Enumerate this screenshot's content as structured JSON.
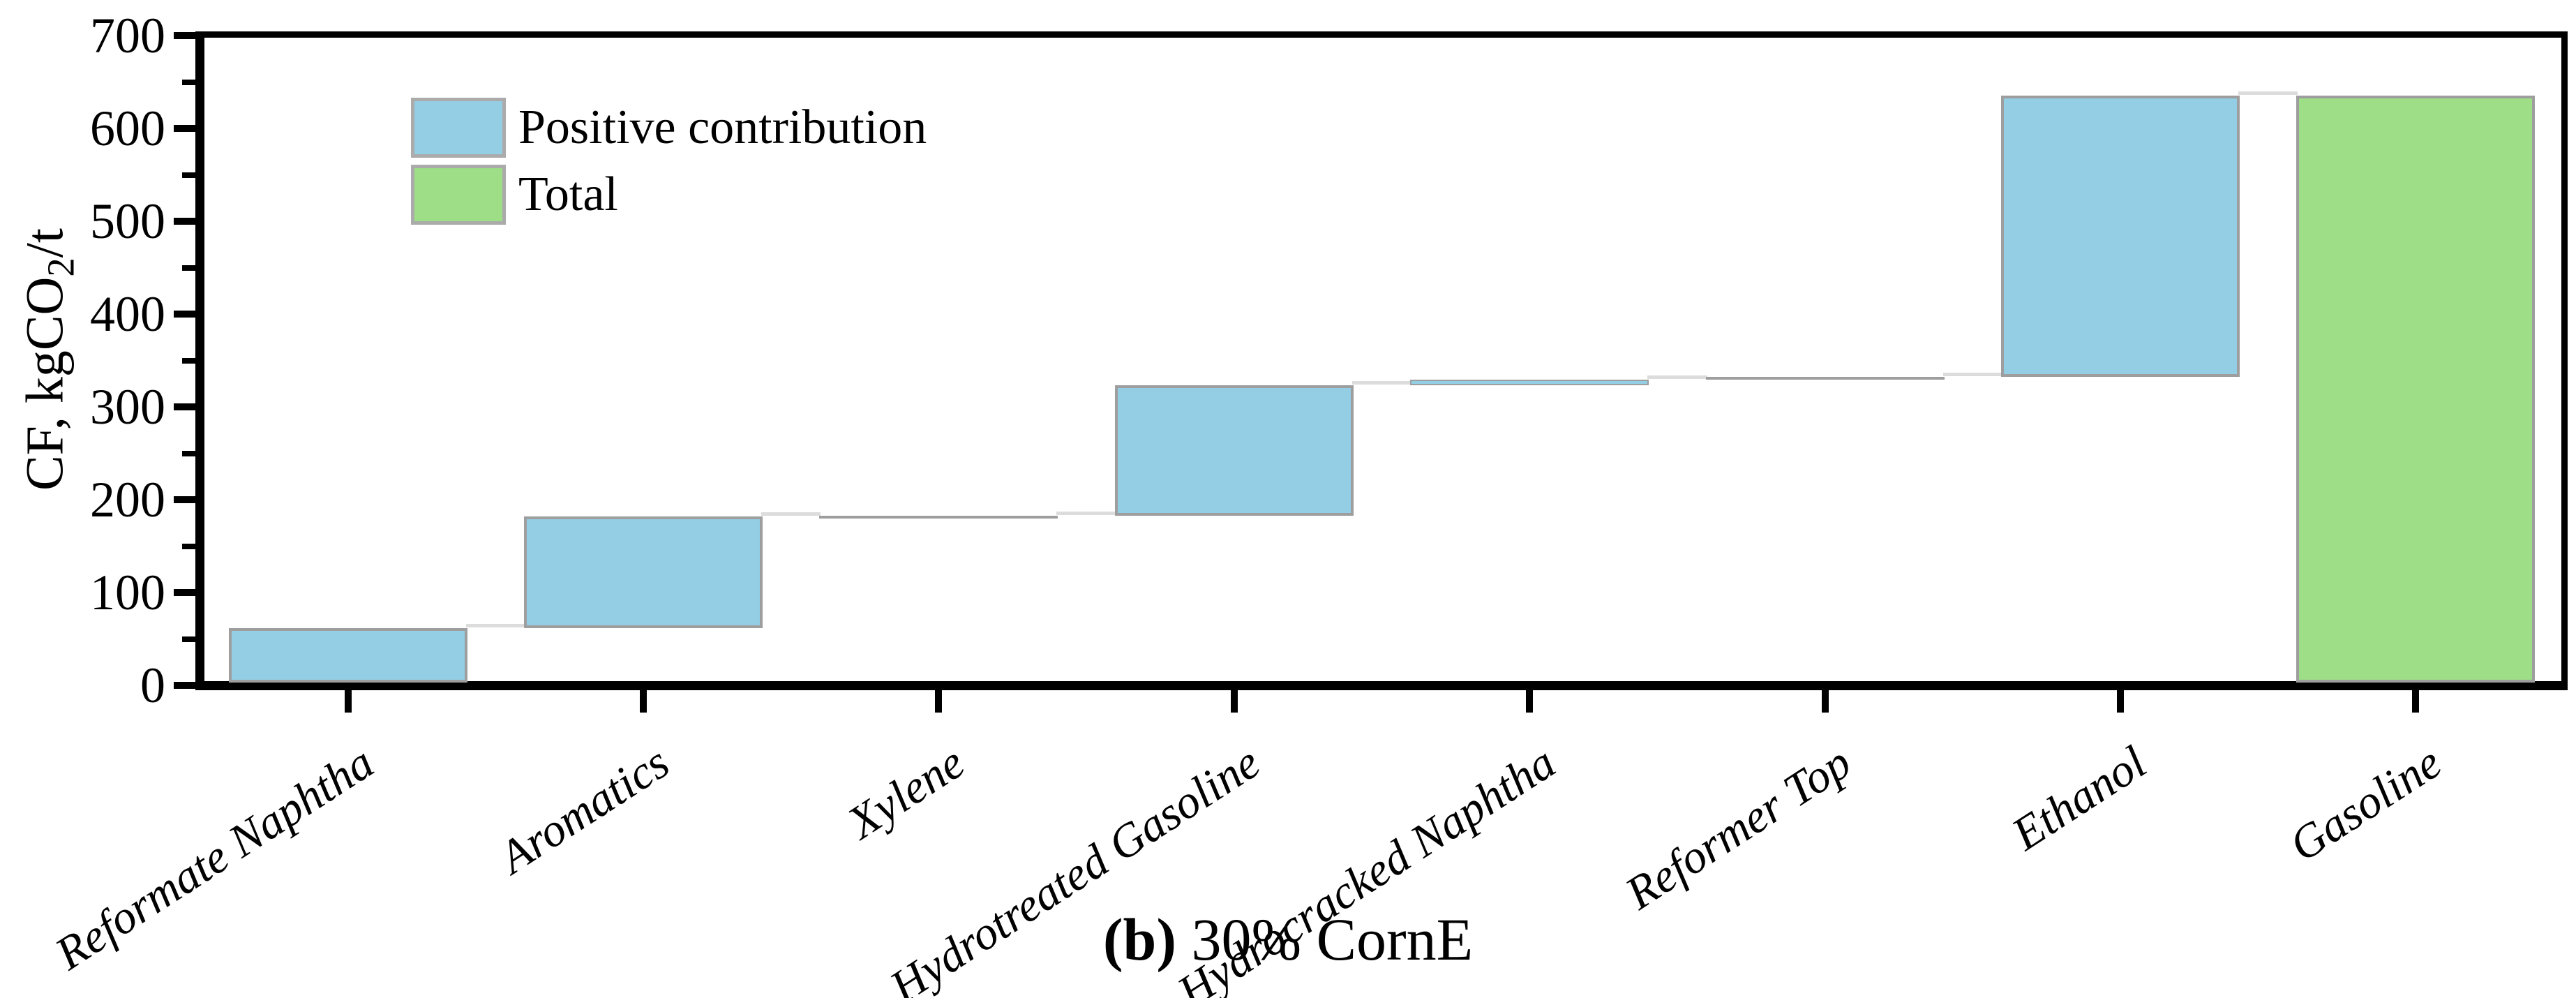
{
  "chart_data": {
    "type": "bar",
    "subtype": "waterfall",
    "caption_bold": "(b)",
    "caption_rest": " 30% CornE",
    "ylabel_parts": {
      "prefix": "CF, kgCO",
      "sub": "2",
      "suffix": "/t"
    },
    "ylabel_text": "CF, kgCO2/t",
    "ylim": [
      0,
      700
    ],
    "ytick_major_step": 100,
    "ytick_minor_step": 50,
    "ytick_labels": [
      "0",
      "100",
      "200",
      "300",
      "400",
      "500",
      "600",
      "700"
    ],
    "grid": false,
    "legend_position": "upper-left-inside",
    "legend": [
      {
        "label": "Positive contribution",
        "color": "#93cee4",
        "border": "#ababab"
      },
      {
        "label": "Total",
        "color": "#9dde87",
        "border": "#ababab"
      }
    ],
    "categories": [
      "Reformate Naphtha",
      "Aromatics",
      "Xylene",
      "Hydrotreated Gasoline",
      "Hydrocracked Naphtha",
      "Reformer Top",
      "Ethanol",
      "Gasoline"
    ],
    "bars": [
      {
        "label": "Reformate Naphtha",
        "series": "Positive contribution",
        "start": 0,
        "end": 62,
        "value": 62
      },
      {
        "label": "Aromatics",
        "series": "Positive contribution",
        "start": 62,
        "end": 182,
        "value": 120
      },
      {
        "label": "Xylene",
        "series": "Positive contribution",
        "start": 182,
        "end": 183,
        "value": 1
      },
      {
        "label": "Hydrotreated Gasoline",
        "series": "Positive contribution",
        "start": 183,
        "end": 323,
        "value": 140
      },
      {
        "label": "Hydrocracked Naphtha",
        "series": "Positive contribution",
        "start": 323,
        "end": 329,
        "value": 6
      },
      {
        "label": "Reformer Top",
        "series": "Positive contribution",
        "start": 329,
        "end": 332,
        "value": 3
      },
      {
        "label": "Ethanol",
        "series": "Positive contribution",
        "start": 332,
        "end": 635,
        "value": 303
      },
      {
        "label": "Gasoline",
        "series": "Total",
        "start": 0,
        "end": 635,
        "value": 635
      }
    ],
    "colors": {
      "positive": "#93cee4",
      "total": "#9dde87",
      "bar_border": "#9e9e9e",
      "connector": "#dcdcdc",
      "axis": "#000000",
      "background": "#ffffff"
    }
  }
}
